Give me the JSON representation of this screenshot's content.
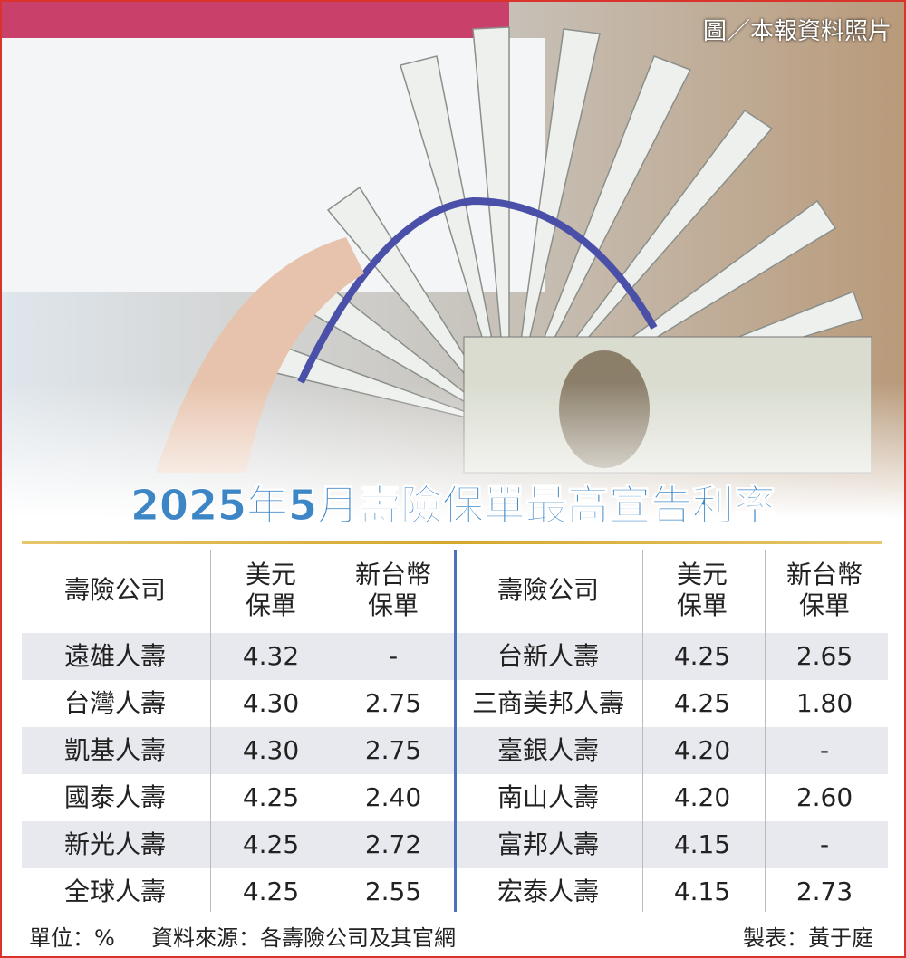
{
  "photo_credit": "圖／本報資料照片",
  "title": "2025年5月壽險保單最高宣告利率",
  "table": {
    "header": [
      [
        "壽險公司"
      ],
      [
        "美元",
        "保單"
      ],
      [
        "新台幣",
        "保單"
      ]
    ],
    "left_rows": [
      [
        "遠雄人壽",
        "4.32",
        "-"
      ],
      [
        "台灣人壽",
        "4.30",
        "2.75"
      ],
      [
        "凱基人壽",
        "4.30",
        "2.75"
      ],
      [
        "國泰人壽",
        "4.25",
        "2.40"
      ],
      [
        "新光人壽",
        "4.25",
        "2.72"
      ],
      [
        "全球人壽",
        "4.25",
        "2.55"
      ]
    ],
    "right_rows": [
      [
        "台新人壽",
        "4.25",
        "2.65"
      ],
      [
        "三商美邦人壽",
        "4.25",
        "1.80"
      ],
      [
        "臺銀人壽",
        "4.20",
        "-"
      ],
      [
        "南山人壽",
        "4.20",
        "2.60"
      ],
      [
        "富邦人壽",
        "4.15",
        "-"
      ],
      [
        "宏泰人壽",
        "4.15",
        "2.73"
      ]
    ]
  },
  "footer": {
    "unit": "單位：%",
    "source": "資料來源：各壽險公司及其官網",
    "maker": "製表：黃于庭"
  }
}
